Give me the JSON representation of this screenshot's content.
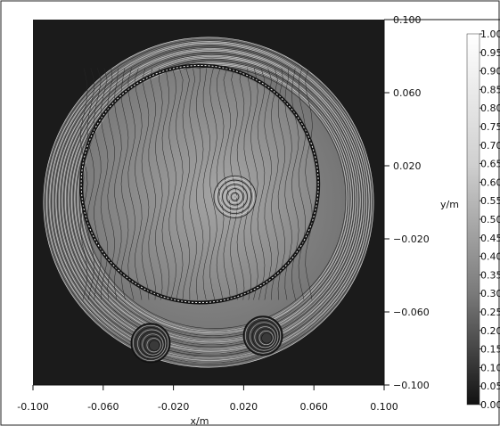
{
  "chart_data": {
    "type": "heatmap",
    "title": "",
    "xlabel": "x/m",
    "ylabel": "y/m",
    "xlim": [
      -0.1,
      0.1
    ],
    "ylim": [
      -0.1,
      0.1
    ],
    "x_ticks": [
      "-0.100",
      "-0.060",
      "-0.020",
      "0.020",
      "0.060",
      "0.100"
    ],
    "y_ticks": [
      "0.100",
      "0.060",
      "0.020",
      "−0.020",
      "−0.060",
      "−0.100"
    ],
    "colorbar": {
      "range": [
        0.0,
        1.0
      ],
      "ticks": [
        "1.00",
        "0.95",
        "0.90",
        "0.85",
        "0.80",
        "0.75",
        "0.70",
        "0.65",
        "0.60",
        "0.55",
        "0.50",
        "0.45",
        "0.40",
        "0.35",
        "0.30",
        "0.25",
        "0.20",
        "0.15",
        "0.10",
        "0.05",
        "0.00"
      ],
      "colormap": "grayscale"
    },
    "features": {
      "outer_circle": {
        "center": [
          0.0,
          0.0
        ],
        "radius": 0.094
      },
      "inner_circle": {
        "center": [
          -0.005,
          0.01
        ],
        "radius": 0.066
      },
      "central_spot": {
        "center": [
          0.015,
          0.003
        ]
      },
      "small_circles": [
        {
          "center": [
            -0.033,
            -0.077
          ],
          "radius": 0.01
        },
        {
          "center": [
            0.031,
            -0.073
          ],
          "radius": 0.01
        }
      ]
    }
  }
}
